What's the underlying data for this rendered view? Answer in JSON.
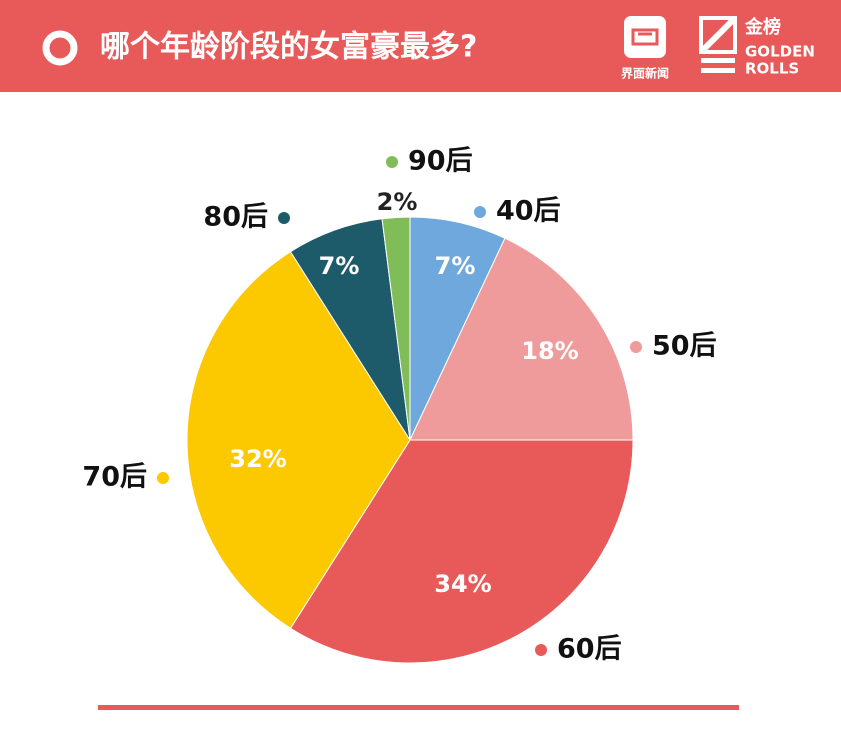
{
  "chart_data": {
    "type": "pie",
    "title": "哪个年龄阶段的女富豪最多?",
    "logos": [
      "界面新闻",
      "金榜",
      "GOLDEN",
      "ROLLS"
    ],
    "categories": [
      "40后",
      "50后",
      "60后",
      "70后",
      "80后",
      "90后"
    ],
    "values": [
      7,
      18,
      34,
      32,
      7,
      2
    ],
    "value_labels": [
      "7%",
      "18%",
      "34%",
      "32%",
      "7%",
      "2%"
    ],
    "colors": [
      "#6fa8dc",
      "#f09b9b",
      "#e85a5a",
      "#fcc800",
      "#1d5b6a",
      "#80bd58"
    ]
  }
}
